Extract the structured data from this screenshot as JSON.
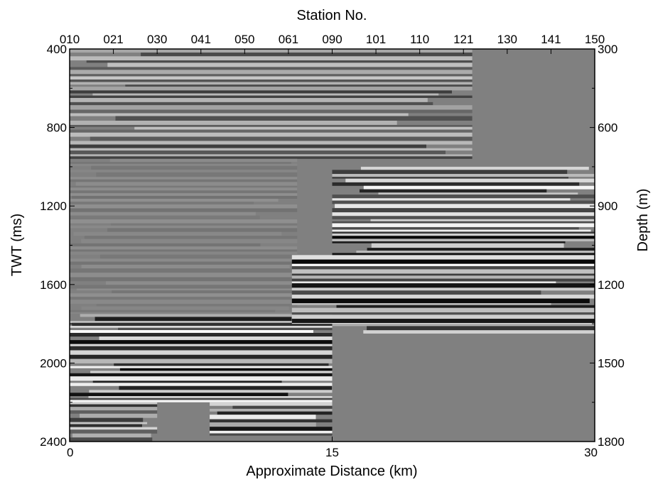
{
  "chart_data": {
    "type": "heatmap",
    "title": "",
    "top_axis": {
      "label": "Station No.",
      "ticks": [
        "010",
        "021",
        "030",
        "041",
        "050",
        "061",
        "090",
        "101",
        "110",
        "121",
        "130",
        "141",
        "150"
      ]
    },
    "x_axis": {
      "label": "Approximate Distance (km)",
      "range": [
        0,
        30
      ],
      "ticks": [
        0,
        15,
        30
      ]
    },
    "y_left": {
      "label": "TWT (ms)",
      "range": [
        400,
        2400
      ],
      "ticks": [
        400,
        800,
        1200,
        1600,
        2000,
        2400
      ],
      "inverted": true
    },
    "y_right": {
      "label": "Depth (m)",
      "range": [
        300,
        1800
      ],
      "ticks": [
        300,
        600,
        900,
        1200,
        1500,
        1800
      ],
      "inverted": true
    },
    "colormap": "grayscale seismic amplitude (white positive, black negative, gray zero)",
    "background_color": "#808080",
    "reflection_zones": [
      {
        "x": [
          0,
          23
        ],
        "twt": [
          400,
          960
        ],
        "amplitude": 0.55
      },
      {
        "x": [
          0,
          13
        ],
        "twt": [
          960,
          1750
        ],
        "amplitude": 0.12
      },
      {
        "x": [
          0,
          15
        ],
        "twt": [
          1750,
          2200
        ],
        "amplitude": 1.0
      },
      {
        "x": [
          0,
          5
        ],
        "twt": [
          2200,
          2400
        ],
        "amplitude": 0.7
      },
      {
        "x": [
          8,
          15
        ],
        "twt": [
          2200,
          2370
        ],
        "amplitude": 0.9
      },
      {
        "x": [
          12.7,
          30
        ],
        "twt": [
          1450,
          1800
        ],
        "amplitude": 1.0
      },
      {
        "x": [
          15,
          30
        ],
        "twt": [
          1000,
          1450
        ],
        "amplitude": 1.0
      },
      {
        "x": [
          15,
          30
        ],
        "twt": [
          1800,
          1850
        ],
        "amplitude": 0.8
      }
    ]
  }
}
